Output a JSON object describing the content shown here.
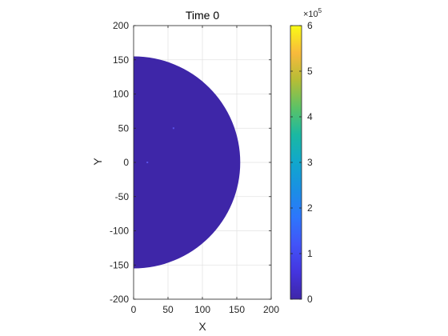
{
  "chart_data": {
    "type": "heatmap",
    "title": "Time 0",
    "xlabel": "X",
    "ylabel": "Y",
    "xlim": [
      0,
      200
    ],
    "ylim": [
      -200,
      200
    ],
    "xticks": [
      0,
      50,
      100,
      150,
      200
    ],
    "yticks": [
      -200,
      -150,
      -100,
      -50,
      0,
      50,
      100,
      150,
      200
    ],
    "grid": true,
    "region": {
      "shape": "half-disc",
      "center": [
        0,
        0
      ],
      "radius": 155,
      "value": 0
    },
    "speckles": [
      {
        "x": 58,
        "y": 50,
        "value": 20000
      },
      {
        "x": 20,
        "y": 0,
        "value": 10000
      }
    ],
    "colorbar": {
      "colormap": "parula",
      "min": 0,
      "max": 600000,
      "ticks": [
        0,
        1,
        2,
        3,
        4,
        5,
        6
      ],
      "exponent_label": "×10",
      "exponent_power": "5"
    }
  }
}
